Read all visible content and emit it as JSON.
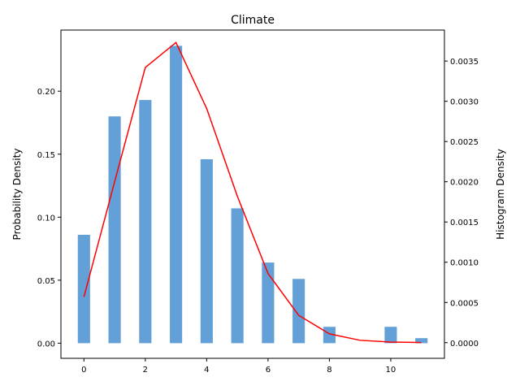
{
  "chart_data": {
    "type": "bar",
    "title": "Climate",
    "xlabel": "",
    "ylabel_left": "Probability Density",
    "ylabel_right": "Histogram Density",
    "xlim": [
      -0.75,
      11.75
    ],
    "ylim_left": [
      -0.012,
      0.2485
    ],
    "ylim_right": [
      -0.000194,
      0.003885
    ],
    "x_ticks": [
      0,
      2,
      4,
      6,
      8,
      10
    ],
    "x_tick_labels": [
      "0",
      "2",
      "4",
      "6",
      "8",
      "10"
    ],
    "y_left_ticks": [
      0.0,
      0.05,
      0.1,
      0.15,
      0.2
    ],
    "y_left_tick_labels": [
      "0.00",
      "0.05",
      "0.10",
      "0.15",
      "0.20"
    ],
    "y_right_ticks": [
      0.0,
      0.0005,
      0.001,
      0.0015,
      0.002,
      0.0025,
      0.003,
      0.0035
    ],
    "y_right_tick_labels": [
      "0.0000",
      "0.0005",
      "0.0010",
      "0.0015",
      "0.0020",
      "0.0025",
      "0.0030",
      "0.0035"
    ],
    "bars": {
      "axis": "left",
      "color": "#5b9bd5",
      "x": [
        0,
        1,
        2,
        3,
        4,
        5,
        6,
        7,
        8,
        10,
        11
      ],
      "values": [
        0.086,
        0.18,
        0.193,
        0.236,
        0.146,
        0.107,
        0.064,
        0.051,
        0.013,
        0.013,
        0.004
      ]
    },
    "line": {
      "axis": "right",
      "color": "#ff0000",
      "x": [
        0,
        1,
        2,
        3,
        4,
        5,
        6,
        7,
        8,
        9,
        10,
        11
      ],
      "values": [
        0.00057,
        0.002,
        0.00342,
        0.00373,
        0.00291,
        0.00182,
        0.00086,
        0.00034,
        0.00011,
        3e-05,
        8e-06,
        2e-06
      ]
    },
    "grid": false
  }
}
